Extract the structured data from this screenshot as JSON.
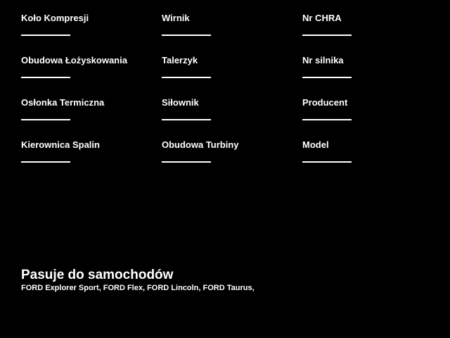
{
  "page": {
    "background_color": "#000000",
    "text_color": "#ffffff"
  },
  "form": {
    "fields": [
      {
        "label": "Koło Kompresji",
        "value": ""
      },
      {
        "label": "Wirnik",
        "value": ""
      },
      {
        "label": "Nr CHRA",
        "value": ""
      },
      {
        "label": "Obudowa Łożyskowania",
        "value": ""
      },
      {
        "label": "Talerzyk",
        "value": ""
      },
      {
        "label": "Nr silnika",
        "value": ""
      },
      {
        "label": "Osłonka Termiczna",
        "value": ""
      },
      {
        "label": "Siłownik",
        "value": ""
      },
      {
        "label": "Producent",
        "value": ""
      },
      {
        "label": "Kierownica Spalin",
        "value": ""
      },
      {
        "label": "Obudowa Turbiny",
        "value": ""
      },
      {
        "label": "Model",
        "value": ""
      }
    ]
  },
  "compatibility": {
    "heading": "Pasuje do samochodów",
    "cars": "FORD Explorer Sport, FORD Flex, FORD Lincoln, FORD Taurus,"
  }
}
